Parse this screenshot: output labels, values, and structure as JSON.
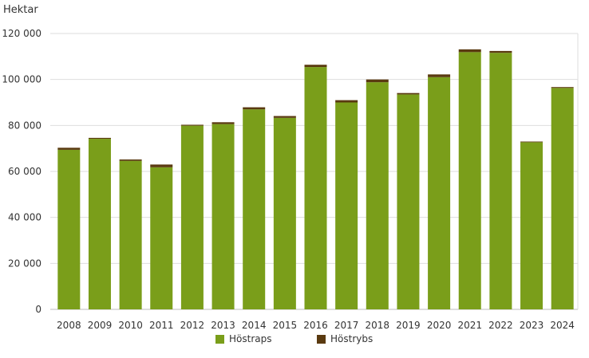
{
  "chart_data": {
    "type": "bar",
    "stacked": true,
    "ylabel": "Hektar",
    "ylim": [
      0,
      120000
    ],
    "yticks": [
      0,
      20000,
      40000,
      60000,
      80000,
      100000,
      120000
    ],
    "ytick_labels": [
      "0",
      "20 000",
      "40 000",
      "60 000",
      "80 000",
      "100 000",
      "120 000"
    ],
    "categories": [
      "2008",
      "2009",
      "2010",
      "2011",
      "2012",
      "2013",
      "2014",
      "2015",
      "2016",
      "2017",
      "2018",
      "2019",
      "2020",
      "2021",
      "2022",
      "2023",
      "2024"
    ],
    "series": [
      {
        "name": "Höstraps",
        "color": "#7a9e1a",
        "values": [
          69400,
          74200,
          64600,
          61800,
          79900,
          80600,
          87000,
          83300,
          105400,
          90000,
          98800,
          93500,
          101000,
          111900,
          111600,
          72700,
          96300
        ]
      },
      {
        "name": "Höstrybs",
        "color": "#5a3a10",
        "values": [
          900,
          400,
          600,
          1200,
          400,
          800,
          900,
          800,
          1000,
          1000,
          1200,
          600,
          1200,
          1200,
          800,
          300,
          400
        ]
      }
    ],
    "grid": true,
    "legend_position": "bottom"
  }
}
